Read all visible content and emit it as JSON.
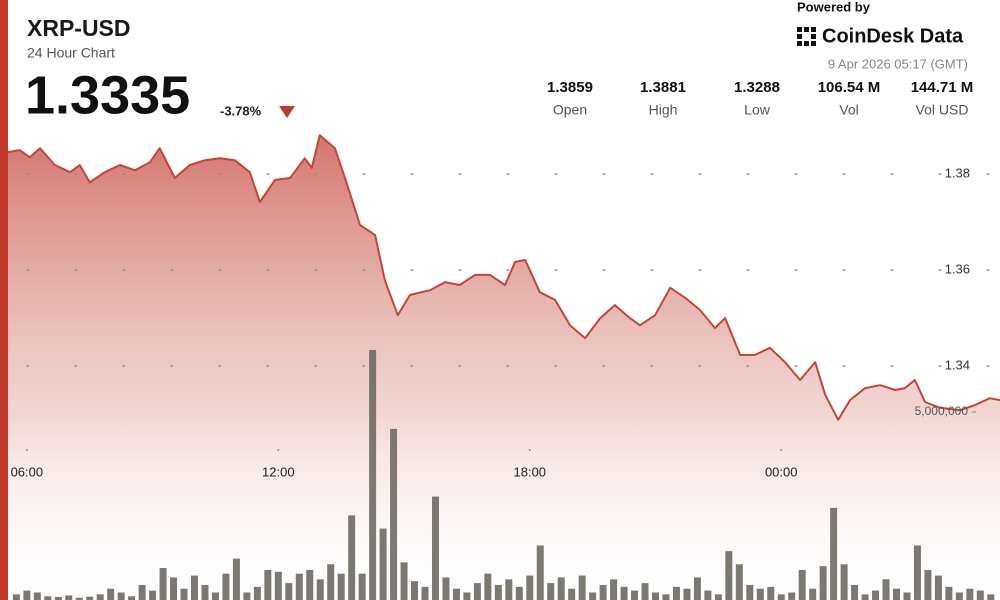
{
  "header": {
    "price": "1.3335",
    "change": "-3.78%",
    "stats": [
      {
        "value": "1.3859",
        "label": "Open"
      },
      {
        "value": "1.3881",
        "label": "High"
      },
      {
        "value": "1.3288",
        "label": "Low"
      },
      {
        "value": "106.54 M",
        "label": "Vol"
      },
      {
        "value": "144.71 M",
        "label": "Vol USD"
      }
    ],
    "powered_by": "Powered by",
    "brand": "CoinDesk Data",
    "timestamp": "9 Apr 2026 05:17 (GMT)"
  },
  "chart_data": {
    "type": "line",
    "title": "XRP-USD",
    "subtitle": "24 Hour Chart",
    "xlim": [
      5.55,
      29.22
    ],
    "xticks": [
      {
        "value": 6,
        "label": "06:00"
      },
      {
        "value": 12,
        "label": "12:00"
      },
      {
        "value": 18,
        "label": "18:00"
      },
      {
        "value": 24,
        "label": "00:00"
      }
    ],
    "ylim": [
      1.3225,
      1.3892
    ],
    "yticks": [
      1.34,
      1.36,
      1.38
    ],
    "y2lim": [
      0,
      12500000
    ],
    "y2ticks": [
      {
        "value": 5000000,
        "label": "5,000,000"
      }
    ],
    "grid": true,
    "series": [
      {
        "color": "#c4453a",
        "x": [
          5.55,
          5.83,
          6.07,
          6.31,
          6.67,
          7.03,
          7.26,
          7.5,
          7.86,
          8.22,
          8.58,
          8.94,
          9.17,
          9.53,
          9.89,
          10.25,
          10.61,
          10.96,
          11.32,
          11.56,
          11.92,
          12.28,
          12.63,
          12.8,
          12.99,
          13.35,
          13.59,
          13.95,
          14.31,
          14.54,
          14.85,
          15.14,
          15.62,
          15.98,
          16.33,
          16.69,
          17.05,
          17.41,
          17.65,
          17.89,
          18.24,
          18.6,
          18.96,
          19.32,
          19.68,
          20.03,
          20.39,
          20.63,
          20.99,
          21.35,
          21.71,
          22.06,
          22.42,
          22.66,
          23.02,
          23.37,
          23.73,
          24.09,
          24.45,
          24.81,
          25.05,
          25.36,
          25.64,
          26,
          26.36,
          26.72,
          26.95,
          27.19,
          27.43,
          27.79,
          28.27,
          28.63,
          28.98,
          29.22
        ],
        "values": [
          1.3846,
          1.385,
          1.3835,
          1.3854,
          1.3819,
          1.3804,
          1.3819,
          1.3783,
          1.3804,
          1.3819,
          1.3808,
          1.3825,
          1.3854,
          1.3792,
          1.3819,
          1.3829,
          1.3833,
          1.3829,
          1.3804,
          1.3742,
          1.3788,
          1.3792,
          1.3833,
          1.3813,
          1.3881,
          1.3854,
          1.3792,
          1.3694,
          1.3673,
          1.3579,
          1.3506,
          1.3548,
          1.3558,
          1.3575,
          1.3569,
          1.359,
          1.359,
          1.3569,
          1.3617,
          1.3621,
          1.3554,
          1.3538,
          1.3485,
          1.3458,
          1.35,
          1.3527,
          1.35,
          1.3485,
          1.3506,
          1.3563,
          1.3542,
          1.3517,
          1.3479,
          1.35,
          1.3423,
          1.3423,
          1.3438,
          1.3408,
          1.3371,
          1.3408,
          1.334,
          1.3288,
          1.3329,
          1.3354,
          1.336,
          1.335,
          1.3354,
          1.3371,
          1.3325,
          1.3313,
          1.3308,
          1.3319,
          1.3333,
          1.3329
        ]
      },
      {
        "type": "bar",
        "axis": "y2",
        "color": "#6e6a63",
        "x": [
          5.75,
          6,
          6.25,
          6.5,
          6.75,
          7,
          7.25,
          7.5,
          7.75,
          8,
          8.25,
          8.5,
          8.75,
          9,
          9.25,
          9.5,
          9.75,
          10,
          10.25,
          10.5,
          10.75,
          11,
          11.25,
          11.5,
          11.75,
          12,
          12.25,
          12.5,
          12.75,
          13,
          13.25,
          13.5,
          13.75,
          14,
          14.25,
          14.5,
          14.75,
          15,
          15.25,
          15.5,
          15.75,
          16,
          16.25,
          16.5,
          16.75,
          17,
          17.25,
          17.5,
          17.75,
          18,
          18.25,
          18.5,
          18.75,
          19,
          19.25,
          19.5,
          19.75,
          20,
          20.25,
          20.5,
          20.75,
          21,
          21.25,
          21.5,
          21.75,
          22,
          22.25,
          22.5,
          22.75,
          23,
          23.25,
          23.5,
          23.75,
          24,
          24.25,
          24.5,
          24.75,
          25,
          25.25,
          25.5,
          25.75,
          26,
          26.25,
          26.5,
          26.75,
          27,
          27.25,
          27.5,
          27.75,
          28,
          28.25,
          28.5,
          28.75,
          29
        ],
        "values": [
          150000,
          250000,
          200000,
          100000,
          80000,
          120000,
          60000,
          90000,
          150000,
          300000,
          200000,
          100000,
          400000,
          250000,
          850000,
          600000,
          300000,
          650000,
          400000,
          200000,
          700000,
          1100000,
          200000,
          350000,
          800000,
          750000,
          450000,
          700000,
          800000,
          550000,
          950000,
          700000,
          2250000,
          700000,
          6650000,
          1900000,
          4550000,
          1000000,
          500000,
          350000,
          2750000,
          600000,
          300000,
          200000,
          450000,
          700000,
          400000,
          550000,
          350000,
          650000,
          1450000,
          450000,
          600000,
          300000,
          650000,
          200000,
          400000,
          550000,
          350000,
          250000,
          450000,
          200000,
          150000,
          350000,
          300000,
          600000,
          250000,
          150000,
          1300000,
          950000,
          400000,
          300000,
          350000,
          150000,
          200000,
          800000,
          300000,
          900000,
          2450000,
          950000,
          400000,
          150000,
          250000,
          550000,
          300000,
          200000,
          1450000,
          800000,
          650000,
          350000,
          200000,
          300000,
          250000,
          150000
        ]
      }
    ]
  }
}
